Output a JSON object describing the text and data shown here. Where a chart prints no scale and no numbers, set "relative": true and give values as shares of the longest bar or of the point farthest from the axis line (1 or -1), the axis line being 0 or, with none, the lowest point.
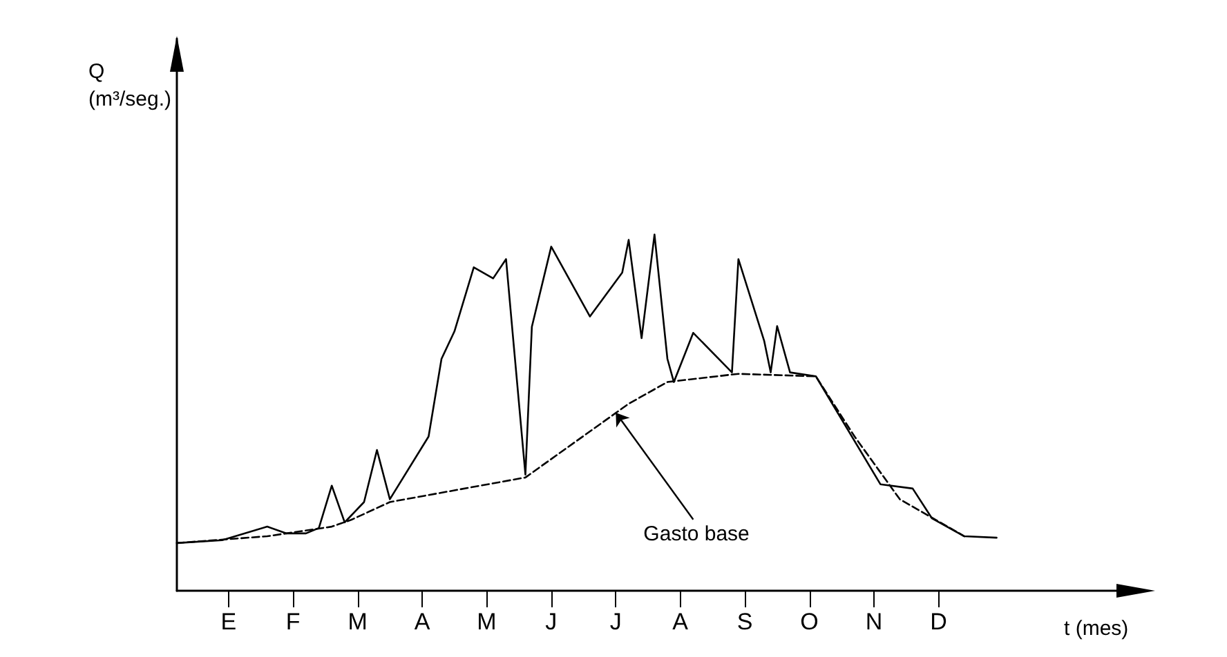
{
  "chart_data": {
    "type": "line",
    "relative": true,
    "xlabel": "t (mes)",
    "marker": "none",
    "grid": false,
    "categories": [
      null,
      null,
      null,
      null,
      null,
      null,
      null,
      null,
      "E",
      null,
      null,
      null,
      null,
      null,
      null,
      null,
      null,
      null,
      "F",
      null,
      null,
      null,
      null,
      null,
      null,
      null,
      null,
      null,
      "M",
      null,
      null,
      null,
      null,
      null,
      null,
      null,
      null,
      null,
      "A",
      null,
      null,
      null,
      null,
      null,
      null,
      null,
      null,
      null,
      "M",
      null,
      null,
      null,
      null,
      null,
      null,
      null,
      null,
      null,
      "J",
      null,
      null,
      null,
      null,
      null,
      null,
      null,
      null,
      null,
      "J",
      null,
      null,
      null,
      null,
      null,
      null,
      null,
      null,
      null,
      "A",
      null,
      null,
      null,
      null,
      null,
      null,
      null,
      null,
      null,
      "S",
      null,
      null,
      null,
      null,
      null,
      null,
      null,
      null,
      null,
      "O",
      null,
      null,
      null,
      null,
      null,
      null,
      null,
      null,
      null,
      "N",
      null,
      null,
      null,
      null,
      null,
      null,
      null,
      null,
      null,
      "D",
      null,
      null,
      null,
      null,
      null,
      null,
      null,
      null,
      null,
      null,
      null,
      null,
      null,
      null,
      null,
      null,
      null,
      null,
      null,
      null,
      null,
      null,
      null,
      null,
      null,
      null,
      null,
      null
    ],
    "annotations": [
      "Gasto base",
      "Q\n(m³/seg.)"
    ],
    "series": [
      {
        "color": "#000000",
        "line_style": "solid",
        "values": [
          0.134,
          null,
          null,
          null,
          null,
          null,
          null,
          0.142,
          null,
          null,
          null,
          null,
          null,
          null,
          0.18,
          null,
          null,
          0.161,
          null,
          null,
          0.161,
          null,
          0.176,
          null,
          0.295,
          null,
          0.192,
          null,
          null,
          0.249,
          null,
          0.395,
          null,
          0.257,
          null,
          null,
          null,
          null,
          null,
          0.433,
          null,
          0.651,
          null,
          0.728,
          null,
          null,
          0.908,
          null,
          null,
          0.877,
          null,
          0.931,
          0.728,
          null,
          0.326,
          0.741,
          null,
          null,
          0.966,
          null,
          null,
          null,
          null,
          null,
          0.77,
          null,
          null,
          null,
          null,
          0.893,
          0.985,
          null,
          0.709,
          null,
          1.0,
          null,
          0.651,
          0.586,
          null,
          null,
          0.724,
          null,
          null,
          null,
          null,
          null,
          0.613,
          0.931,
          null,
          null,
          null,
          0.701,
          0.613,
          0.743,
          null,
          0.613,
          null,
          null,
          null,
          0.602,
          null,
          null,
          null,
          null,
          null,
          null,
          null,
          null,
          null,
          0.299,
          null,
          null,
          null,
          null,
          0.287,
          null,
          null,
          0.203,
          null,
          null,
          null,
          null,
          0.153,
          null,
          null,
          null,
          null,
          0.149,
          null,
          null,
          null,
          null,
          null,
          null,
          null,
          null,
          null,
          null,
          null,
          null,
          null,
          null,
          null,
          null,
          null,
          null,
          null
        ]
      },
      {
        "color": "#000000",
        "line_style": "dashed",
        "values": [
          0.134,
          null,
          null,
          null,
          null,
          null,
          null,
          null,
          null,
          null,
          null,
          null,
          null,
          null,
          0.153,
          null,
          null,
          null,
          null,
          null,
          null,
          null,
          null,
          null,
          0.18,
          null,
          null,
          0.199,
          null,
          null,
          null,
          null,
          null,
          0.249,
          null,
          null,
          null,
          null,
          null,
          null,
          null,
          null,
          null,
          null,
          null,
          null,
          null,
          null,
          null,
          null,
          null,
          null,
          null,
          null,
          0.318,
          null,
          null,
          null,
          null,
          null,
          null,
          null,
          null,
          null,
          null,
          null,
          null,
          null,
          null,
          null,
          0.525,
          null,
          null,
          null,
          null,
          null,
          0.586,
          null,
          null,
          null,
          null,
          null,
          null,
          null,
          null,
          null,
          null,
          0.609,
          null,
          null,
          null,
          null,
          null,
          null,
          null,
          null,
          null,
          null,
          null,
          0.602,
          null,
          null,
          null,
          null,
          null,
          0.433,
          null,
          null,
          null,
          null,
          null,
          null,
          0.257,
          null,
          null,
          null,
          null,
          null,
          null,
          null,
          null,
          null,
          0.153,
          null,
          null,
          null,
          null,
          null,
          null,
          null,
          null,
          null,
          null,
          null,
          null,
          null,
          null,
          null,
          null,
          null,
          null,
          null,
          null,
          null,
          null,
          null,
          null
        ]
      }
    ]
  }
}
